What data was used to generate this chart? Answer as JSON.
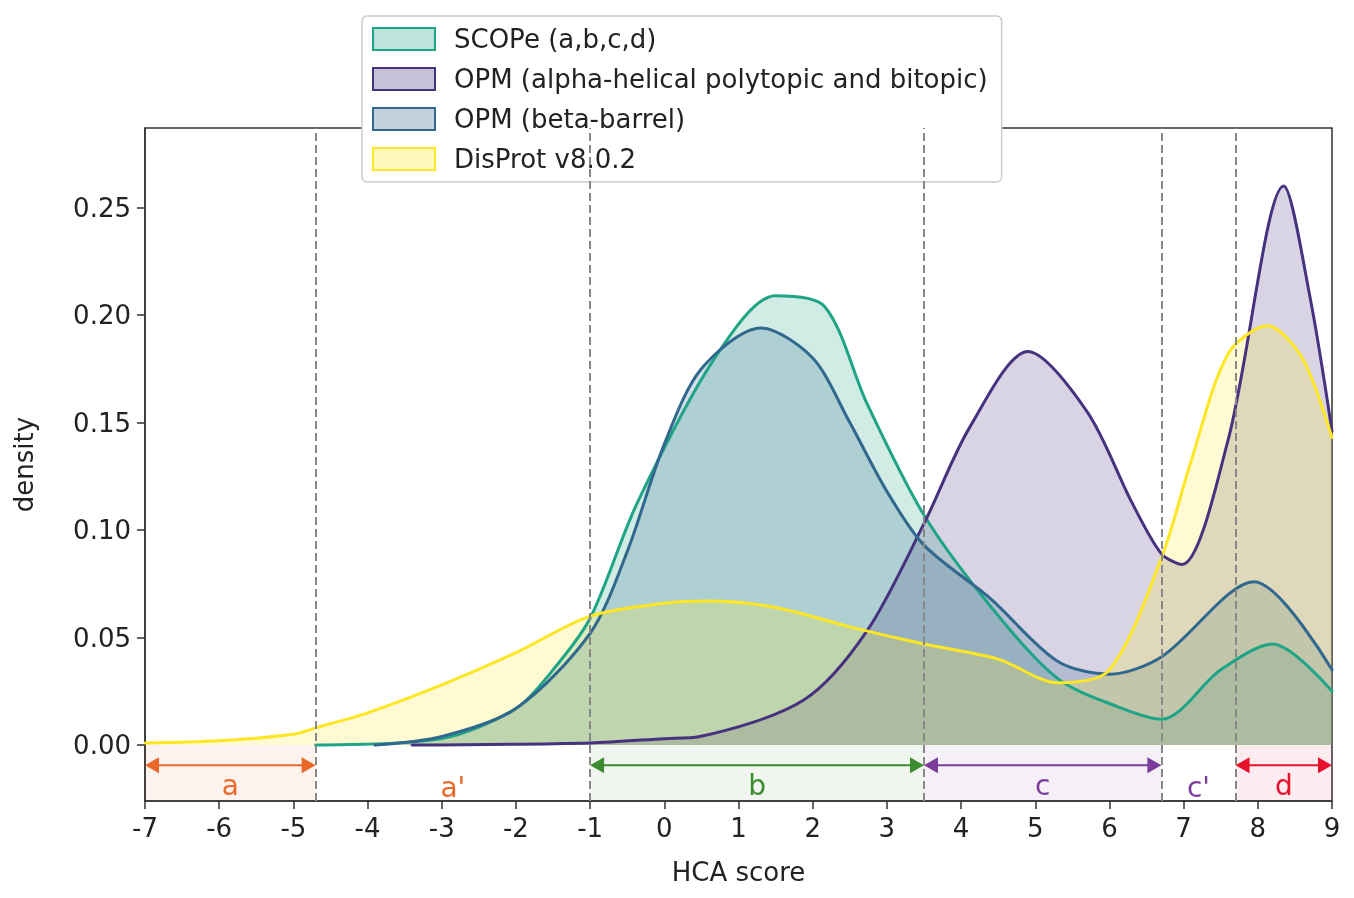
{
  "chart_data": {
    "type": "area",
    "xlabel": "HCA score",
    "ylabel": "density",
    "xlim": [
      -7,
      9
    ],
    "xticks": [
      -7,
      -6,
      -5,
      -4,
      -3,
      -2,
      -1,
      0,
      1,
      2,
      3,
      4,
      5,
      6,
      7,
      8,
      9
    ],
    "ylim": [
      -0.026,
      0.287
    ],
    "yticks": [
      {
        "value": 0,
        "label": "0.00"
      },
      {
        "value": 0.05,
        "label": "0.05"
      },
      {
        "value": 0.1,
        "label": "0.10"
      },
      {
        "value": 0.15,
        "label": "0.15"
      },
      {
        "value": 0.2,
        "label": "0.20"
      },
      {
        "value": 0.25,
        "label": "0.25"
      }
    ],
    "grid": false,
    "legend": "top",
    "marker": "none",
    "line_style": "solid",
    "series": [
      {
        "name": "SCOPe (a,b,c,d)",
        "color": "#20a486",
        "x": [
          -4.7,
          -3,
          -2,
          -1.5,
          -1,
          -0.36,
          0.68,
          1.5,
          2.16,
          2.73,
          3.5,
          4.41,
          5.3,
          6.1,
          6.7,
          7.5,
          8.2,
          9
        ],
        "values": [
          0,
          0.003,
          0.017,
          0.035,
          0.059,
          0.113,
          0.18,
          0.209,
          0.204,
          0.159,
          0.107,
          0.064,
          0.031,
          0.018,
          0.012,
          0.035,
          0.047,
          0.025
        ]
      },
      {
        "name": "OPM (alpha-helical polytopic and bitopic)",
        "color": "#46327e",
        "x": [
          -3.4,
          -1,
          0,
          0.48,
          1.88,
          2.73,
          3.5,
          4.12,
          4.9,
          5.7,
          6.3,
          6.7,
          6.98,
          7.6,
          8.35,
          8.7,
          9
        ],
        "values": [
          0,
          0.001,
          0.003,
          0.004,
          0.021,
          0.053,
          0.103,
          0.148,
          0.183,
          0.155,
          0.113,
          0.089,
          0.084,
          0.142,
          0.26,
          0.209,
          0.146
        ]
      },
      {
        "name": "OPM (beta-barrel)",
        "color": "#31688e",
        "x": [
          -3.9,
          -3,
          -2,
          -1,
          -0.5,
          0,
          0.5,
          1.3,
          2,
          2.5,
          3,
          3.5,
          4.4,
          5.3,
          6,
          6.7,
          7.95,
          9
        ],
        "values": [
          0,
          0.004,
          0.017,
          0.052,
          0.09,
          0.14,
          0.175,
          0.194,
          0.18,
          0.15,
          0.118,
          0.093,
          0.068,
          0.039,
          0.033,
          0.041,
          0.076,
          0.035
        ]
      },
      {
        "name": "DisProt v8.0.2",
        "color": "#fde725",
        "x": [
          -7,
          -6,
          -5,
          -4.7,
          -4,
          -3,
          -2,
          -1,
          0,
          0.6,
          1.5,
          2.5,
          3.5,
          4.5,
          5.3,
          6,
          6.7,
          7.1,
          7.6,
          8.13,
          8.6,
          9
        ],
        "values": [
          0.001,
          0.002,
          0.005,
          0.008,
          0.015,
          0.028,
          0.043,
          0.06,
          0.066,
          0.067,
          0.064,
          0.055,
          0.047,
          0.04,
          0.029,
          0.035,
          0.087,
          0.132,
          0.182,
          0.195,
          0.18,
          0.143
        ]
      }
    ],
    "ref_lines": [
      {
        "axis": "x",
        "value": -4.7,
        "color": "#888888",
        "line_style": "dashed"
      },
      {
        "axis": "x",
        "value": -1,
        "color": "#888888",
        "line_style": "dashed"
      },
      {
        "axis": "x",
        "value": 3.5,
        "color": "#888888",
        "line_style": "dashed"
      },
      {
        "axis": "x",
        "value": 6.7,
        "color": "#888888",
        "line_style": "dashed"
      },
      {
        "axis": "x",
        "value": 7.7,
        "color": "#888888",
        "line_style": "dashed"
      }
    ],
    "bands": [
      {
        "axis": "x",
        "from": -7,
        "to": -4.7,
        "label": "a",
        "color": "#e8692a"
      },
      {
        "axis": "x",
        "from": -1,
        "to": 3.5,
        "label": "b",
        "color": "#3d8b2f"
      },
      {
        "axis": "x",
        "from": 3.5,
        "to": 6.7,
        "label": "c",
        "color": "#7b3c9a"
      },
      {
        "axis": "x",
        "from": 7.7,
        "to": 9,
        "label": "d",
        "color": "#e8112d"
      }
    ],
    "annotations": [
      "a'",
      "c'"
    ]
  }
}
